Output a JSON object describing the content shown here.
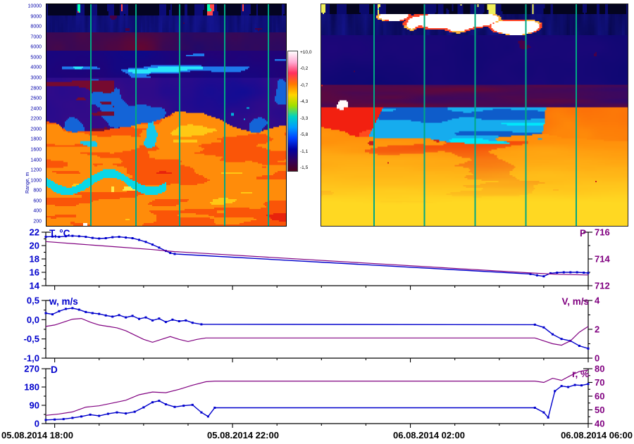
{
  "heatmaps": {
    "left": {
      "type": "heatmap",
      "axis_title": "Range, m",
      "y_ticks": [
        "10000",
        "9000",
        "8000",
        "7000",
        "6000",
        "5000",
        "4000",
        "3000",
        "2800",
        "2600",
        "2400",
        "2200",
        "2000",
        "1800",
        "1600",
        "1400",
        "1200",
        "1000",
        "800",
        "600",
        "400",
        "200"
      ],
      "gridlines": [
        0.185,
        0.37,
        0.555,
        0.74,
        0.925
      ],
      "gridline_color": "#00a884"
    },
    "right": {
      "type": "heatmap",
      "gridlines": [
        0.17,
        0.335,
        0.5,
        0.665,
        0.83
      ],
      "gridline_color": "#00a884"
    },
    "colorbar": {
      "labels": [
        "+10,0",
        "-0,2",
        "-0,7",
        "-4,3",
        "-3,3",
        "-5,8",
        "-1,1",
        "-1,5"
      ],
      "gradient": [
        "#ffffff",
        "#ffaad2",
        "#ff2f5e",
        "#ff7700",
        "#ffd400",
        "#9fe000",
        "#00d2c3",
        "#009cff",
        "#0040ff",
        "#0000a2",
        "#2e005e",
        "#4d001d"
      ]
    }
  },
  "x_axis": {
    "labels": [
      "05.08.2014 18:00",
      "05.08.2014 22:00",
      "06.08.2014 02:00",
      "06.08.2014 06:00"
    ],
    "domain": [
      17.8,
      30
    ],
    "tick_hours": [
      18,
      22,
      26,
      30
    ]
  },
  "chart_data": "see charts",
  "charts": [
    {
      "id": "t-p",
      "type": "line",
      "left_axis": {
        "label": "T, °C",
        "ticks": [
          "22",
          "20",
          "18",
          "16",
          "14"
        ],
        "min": 14,
        "max": 22,
        "minor_step": 1,
        "color": "#0000cc"
      },
      "right_axis": {
        "label": "P",
        "ticks": [
          "716",
          "714",
          "712"
        ],
        "min": 712,
        "max": 716,
        "minor_step": 1,
        "color": "#800080"
      },
      "series": [
        {
          "name": "T",
          "axis": "left",
          "color": "#0000cc",
          "markers": true,
          "points": [
            [
              17.8,
              21.3
            ],
            [
              17.95,
              21.35
            ],
            [
              18.1,
              21.3
            ],
            [
              18.25,
              21.4
            ],
            [
              18.4,
              21.45
            ],
            [
              18.55,
              21.4
            ],
            [
              18.7,
              21.3
            ],
            [
              18.85,
              21.15
            ],
            [
              19.0,
              21.05
            ],
            [
              19.15,
              21.1
            ],
            [
              19.3,
              21.25
            ],
            [
              19.45,
              21.3
            ],
            [
              19.6,
              21.2
            ],
            [
              19.75,
              21.1
            ],
            [
              19.9,
              20.85
            ],
            [
              20.05,
              20.55
            ],
            [
              20.2,
              20.15
            ],
            [
              20.35,
              19.7
            ],
            [
              20.5,
              19.2
            ],
            [
              20.6,
              18.9
            ],
            [
              20.7,
              18.75
            ],
            [
              28.7,
              15.75
            ],
            [
              28.85,
              15.55
            ],
            [
              29.0,
              15.4
            ],
            [
              29.15,
              15.85
            ],
            [
              29.3,
              15.95
            ],
            [
              29.45,
              16.0
            ],
            [
              29.6,
              16.0
            ],
            [
              29.75,
              16.0
            ],
            [
              29.9,
              15.95
            ],
            [
              30.0,
              15.9
            ]
          ]
        },
        {
          "name": "P",
          "axis": "right",
          "color": "#800080",
          "markers": false,
          "points": [
            [
              17.8,
              715.3
            ],
            [
              18.6,
              715.1
            ],
            [
              19.4,
              714.9
            ],
            [
              20.2,
              714.7
            ],
            [
              20.7,
              714.55
            ],
            [
              28.7,
              712.95
            ],
            [
              29.3,
              712.85
            ],
            [
              30.0,
              712.8
            ]
          ]
        }
      ]
    },
    {
      "id": "w-v",
      "type": "line",
      "left_axis": {
        "label": "w, m/s",
        "ticks": [
          "0,5",
          "0,0",
          "-0,5",
          "-1,0"
        ],
        "min": -1,
        "max": 0.5,
        "minor_step": 0.25,
        "color": "#0000cc"
      },
      "right_axis": {
        "label": "V, m/s",
        "ticks": [
          "4",
          "2",
          "0"
        ],
        "min": 0,
        "max": 4,
        "minor_step": 1,
        "color": "#800080"
      },
      "series": [
        {
          "name": "w",
          "axis": "left",
          "color": "#0000cc",
          "markers": true,
          "points": [
            [
              17.8,
              0.17
            ],
            [
              17.95,
              0.14
            ],
            [
              18.1,
              0.22
            ],
            [
              18.25,
              0.28
            ],
            [
              18.4,
              0.3
            ],
            [
              18.55,
              0.26
            ],
            [
              18.7,
              0.2
            ],
            [
              18.85,
              0.17
            ],
            [
              19.0,
              0.15
            ],
            [
              19.15,
              0.11
            ],
            [
              19.3,
              0.08
            ],
            [
              19.45,
              0.12
            ],
            [
              19.6,
              0.06
            ],
            [
              19.75,
              0.1
            ],
            [
              19.9,
              0.02
            ],
            [
              20.05,
              0.06
            ],
            [
              20.2,
              -0.02
            ],
            [
              20.35,
              0.03
            ],
            [
              20.5,
              -0.06
            ],
            [
              20.65,
              0.0
            ],
            [
              20.8,
              -0.04
            ],
            [
              20.95,
              -0.02
            ],
            [
              21.1,
              -0.08
            ],
            [
              21.3,
              -0.12
            ],
            [
              28.8,
              -0.13
            ],
            [
              29.0,
              -0.2
            ],
            [
              29.2,
              -0.38
            ],
            [
              29.4,
              -0.5
            ],
            [
              29.6,
              -0.55
            ],
            [
              29.8,
              -0.68
            ],
            [
              30.0,
              -0.75
            ]
          ]
        },
        {
          "name": "V",
          "axis": "right",
          "color": "#800080",
          "markers": false,
          "points": [
            [
              17.8,
              2.2
            ],
            [
              18.0,
              2.3
            ],
            [
              18.2,
              2.5
            ],
            [
              18.4,
              2.7
            ],
            [
              18.6,
              2.75
            ],
            [
              18.8,
              2.5
            ],
            [
              19.0,
              2.3
            ],
            [
              19.2,
              2.2
            ],
            [
              19.4,
              2.1
            ],
            [
              19.6,
              1.9
            ],
            [
              19.8,
              1.6
            ],
            [
              20.0,
              1.3
            ],
            [
              20.2,
              1.1
            ],
            [
              20.4,
              1.3
            ],
            [
              20.6,
              1.5
            ],
            [
              20.8,
              1.3
            ],
            [
              21.0,
              1.15
            ],
            [
              21.2,
              1.3
            ],
            [
              21.4,
              1.4
            ],
            [
              28.8,
              1.4
            ],
            [
              29.0,
              1.2
            ],
            [
              29.2,
              1.0
            ],
            [
              29.4,
              0.9
            ],
            [
              29.6,
              1.2
            ],
            [
              29.8,
              1.8
            ],
            [
              30.0,
              2.2
            ]
          ]
        }
      ]
    },
    {
      "id": "d-r",
      "type": "line",
      "left_axis": {
        "label": "D",
        "ticks": [
          "270",
          "180",
          "90",
          "0"
        ],
        "min": 0,
        "max": 270,
        "minor_step": 45,
        "color": "#0000cc"
      },
      "right_axis": {
        "label": "r, %",
        "ticks": [
          "80",
          "70",
          "60",
          "50",
          "40"
        ],
        "min": 40,
        "max": 80,
        "minor_step": 5,
        "color": "#800080"
      },
      "series": [
        {
          "name": "D",
          "axis": "left",
          "color": "#0000cc",
          "markers": true,
          "points": [
            [
              17.8,
              18
            ],
            [
              18.0,
              20
            ],
            [
              18.2,
              22
            ],
            [
              18.4,
              28
            ],
            [
              18.6,
              35
            ],
            [
              18.8,
              44
            ],
            [
              19.0,
              38
            ],
            [
              19.2,
              48
            ],
            [
              19.4,
              55
            ],
            [
              19.6,
              50
            ],
            [
              19.8,
              58
            ],
            [
              20.0,
              80
            ],
            [
              20.2,
              105
            ],
            [
              20.35,
              112
            ],
            [
              20.5,
              95
            ],
            [
              20.7,
              82
            ],
            [
              20.9,
              88
            ],
            [
              21.1,
              92
            ],
            [
              21.3,
              55
            ],
            [
              21.45,
              35
            ],
            [
              21.6,
              78
            ],
            [
              28.8,
              78
            ],
            [
              29.0,
              55
            ],
            [
              29.1,
              30
            ],
            [
              29.25,
              160
            ],
            [
              29.4,
              185
            ],
            [
              29.55,
              180
            ],
            [
              29.7,
              190
            ],
            [
              29.85,
              188
            ],
            [
              30.0,
              195
            ]
          ]
        },
        {
          "name": "r",
          "axis": "right",
          "color": "#800080",
          "markers": false,
          "points": [
            [
              17.8,
              46
            ],
            [
              18.1,
              47
            ],
            [
              18.4,
              48.5
            ],
            [
              18.7,
              52
            ],
            [
              19.0,
              53
            ],
            [
              19.3,
              55
            ],
            [
              19.6,
              57
            ],
            [
              19.9,
              61
            ],
            [
              20.2,
              63
            ],
            [
              20.5,
              62.5
            ],
            [
              20.8,
              65
            ],
            [
              21.1,
              68
            ],
            [
              21.4,
              70.5
            ],
            [
              21.6,
              71
            ],
            [
              28.8,
              71
            ],
            [
              29.0,
              70
            ],
            [
              29.2,
              73
            ],
            [
              29.4,
              71.5
            ],
            [
              29.6,
              75
            ],
            [
              29.8,
              78
            ],
            [
              30.0,
              79
            ]
          ]
        }
      ]
    }
  ]
}
